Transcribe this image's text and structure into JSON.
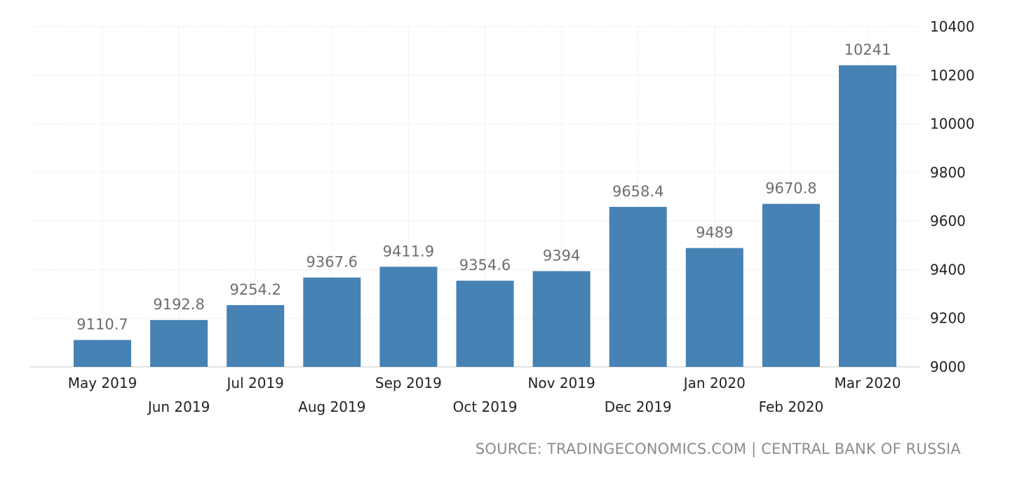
{
  "chart_data": {
    "type": "bar",
    "title": "",
    "xlabel": "",
    "ylabel": "",
    "categories": [
      "May 2019",
      "Jun 2019",
      "Jul 2019",
      "Aug 2019",
      "Sep 2019",
      "Oct 2019",
      "Nov 2019",
      "Dec 2019",
      "Jan 2020",
      "Feb 2020",
      "Mar 2020"
    ],
    "values": [
      9110.7,
      9192.8,
      9254.2,
      9367.6,
      9411.9,
      9354.6,
      9394,
      9658.4,
      9489,
      9670.8,
      10241
    ],
    "value_labels": [
      "9110.7",
      "9192.8",
      "9254.2",
      "9367.6",
      "9411.9",
      "9354.6",
      "9394",
      "9658.4",
      "9489",
      "9670.8",
      "10241"
    ],
    "ylim": [
      9000,
      10400
    ],
    "yticks": [
      9000,
      9200,
      9400,
      9600,
      9800,
      10000,
      10200,
      10400
    ],
    "y_axis_side": "right",
    "grid": true,
    "bar_color": "#4682b4"
  },
  "source_text": "SOURCE: TRADINGECONOMICS.COM | CENTRAL BANK OF RUSSIA"
}
